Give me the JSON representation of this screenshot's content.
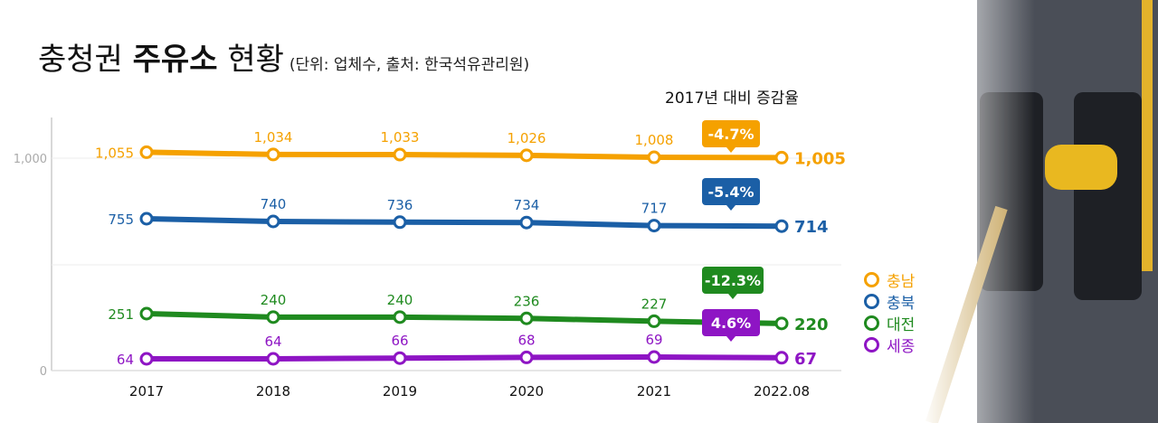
{
  "title": {
    "main_1": "충청권",
    "main_bold": "주유소",
    "main_2": "현황",
    "subtitle": "(단위: 업체수, 출처: 한국석유관리원)"
  },
  "comparison_label": "2017년 대비 증감율",
  "legend": [
    {
      "label": "충남",
      "color": "#f5a100"
    },
    {
      "label": "충북",
      "color": "#1b5fa6"
    },
    {
      "label": "대전",
      "color": "#1f8a1f"
    },
    {
      "label": "세종",
      "color": "#8e15c4"
    }
  ],
  "chart_data": {
    "type": "line",
    "title": "충청권 주유소 현황",
    "categories": [
      "2017",
      "2018",
      "2019",
      "2020",
      "2021",
      "2022.08"
    ],
    "y_ticks": [
      "1,000",
      "0"
    ],
    "series": [
      {
        "name": "충남",
        "color": "#f5a100",
        "values": [
          1055,
          1034,
          1033,
          1026,
          1008,
          1005
        ],
        "labels": [
          "1,055",
          "1,034",
          "1,033",
          "1,026",
          "1,008",
          "1,005"
        ],
        "change": "-4.7%"
      },
      {
        "name": "충북",
        "color": "#1b5fa6",
        "values": [
          755,
          740,
          736,
          734,
          717,
          714
        ],
        "labels": [
          "755",
          "740",
          "736",
          "734",
          "717",
          "714"
        ],
        "change": "-5.4%"
      },
      {
        "name": "대전",
        "color": "#1f8a1f",
        "values": [
          251,
          240,
          240,
          236,
          227,
          220
        ],
        "labels": [
          "251",
          "240",
          "240",
          "236",
          "227",
          "220"
        ],
        "change": "-12.3%"
      },
      {
        "name": "세종",
        "color": "#8e15c4",
        "values": [
          64,
          64,
          66,
          68,
          69,
          67
        ],
        "labels": [
          "64",
          "64",
          "66",
          "68",
          "69",
          "67"
        ],
        "change": "4.6%"
      }
    ]
  }
}
